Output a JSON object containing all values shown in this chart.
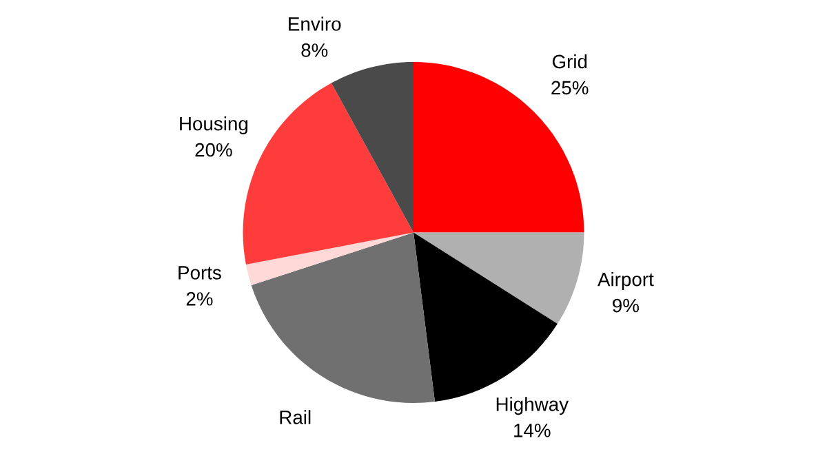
{
  "chart_data": {
    "type": "pie",
    "categories": [
      "Grid",
      "Airport",
      "Highway",
      "Rail",
      "Ports",
      "Housing",
      "Enviro"
    ],
    "values": [
      25,
      9,
      14,
      22,
      2,
      20,
      8
    ],
    "colors": [
      "#ff0000",
      "#b0b0b0",
      "#000000",
      "#707070",
      "#ffd8d8",
      "#ff3c3c",
      "#4a4a4a"
    ],
    "value_labels": [
      "25%",
      "9%",
      "14%",
      null,
      "2%",
      "20%",
      "8%"
    ],
    "legend": false
  }
}
